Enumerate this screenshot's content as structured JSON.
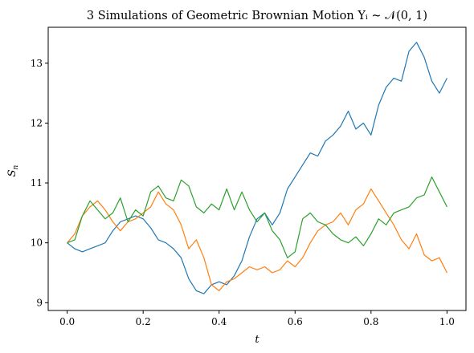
{
  "chart_data": {
    "type": "line",
    "title": "3 Simulations of Geometric Brownian Motion Yᵢ ~ 𝒩(0, 1)",
    "xlabel": "t",
    "ylabel": "S",
    "ylabel_subscript": "n",
    "xlim": [
      -0.05,
      1.05
    ],
    "ylim": [
      8.87,
      13.6
    ],
    "xticks": [
      0.0,
      0.2,
      0.4,
      0.6,
      0.8,
      1.0
    ],
    "xtick_labels": [
      "0.0",
      "0.2",
      "0.4",
      "0.6",
      "0.8",
      "1.0"
    ],
    "yticks": [
      9,
      10,
      11,
      12,
      13
    ],
    "ytick_labels": [
      "9",
      "10",
      "11",
      "12",
      "13"
    ],
    "grid": false,
    "legend": false,
    "series": [
      {
        "color": "#1f77b4",
        "x": [
          0.0,
          0.02,
          0.04,
          0.06,
          0.08,
          0.1,
          0.12,
          0.14,
          0.16,
          0.18,
          0.2,
          0.22,
          0.24,
          0.26,
          0.28,
          0.3,
          0.32,
          0.34,
          0.36,
          0.38,
          0.4,
          0.42,
          0.44,
          0.46,
          0.48,
          0.5,
          0.52,
          0.54,
          0.56,
          0.58,
          0.6,
          0.62,
          0.64,
          0.66,
          0.68,
          0.7,
          0.72,
          0.74,
          0.76,
          0.78,
          0.8,
          0.82,
          0.84,
          0.86,
          0.88,
          0.9,
          0.92,
          0.94,
          0.96,
          0.98,
          1.0
        ],
        "values": [
          10.0,
          9.9,
          9.85,
          9.9,
          9.95,
          10.0,
          10.2,
          10.35,
          10.4,
          10.45,
          10.4,
          10.25,
          10.05,
          10.0,
          9.9,
          9.75,
          9.4,
          9.2,
          9.15,
          9.3,
          9.35,
          9.3,
          9.45,
          9.7,
          10.1,
          10.4,
          10.5,
          10.3,
          10.5,
          10.9,
          11.1,
          11.3,
          11.5,
          11.45,
          11.7,
          11.8,
          11.95,
          12.2,
          11.9,
          12.0,
          11.8,
          12.3,
          12.6,
          12.75,
          12.7,
          13.2,
          13.35,
          13.1,
          12.7,
          12.5,
          12.75
        ]
      },
      {
        "color": "#ff7f0e",
        "x": [
          0.0,
          0.02,
          0.04,
          0.06,
          0.08,
          0.1,
          0.12,
          0.14,
          0.16,
          0.18,
          0.2,
          0.22,
          0.24,
          0.26,
          0.28,
          0.3,
          0.32,
          0.34,
          0.36,
          0.38,
          0.4,
          0.42,
          0.44,
          0.46,
          0.48,
          0.5,
          0.52,
          0.54,
          0.56,
          0.58,
          0.6,
          0.62,
          0.64,
          0.66,
          0.68,
          0.7,
          0.72,
          0.74,
          0.76,
          0.78,
          0.8,
          0.82,
          0.84,
          0.86,
          0.88,
          0.9,
          0.92,
          0.94,
          0.96,
          0.98,
          1.0
        ],
        "values": [
          10.0,
          10.15,
          10.45,
          10.6,
          10.7,
          10.55,
          10.35,
          10.2,
          10.35,
          10.4,
          10.5,
          10.6,
          10.85,
          10.65,
          10.55,
          10.3,
          9.9,
          10.05,
          9.75,
          9.3,
          9.2,
          9.35,
          9.4,
          9.5,
          9.6,
          9.55,
          9.6,
          9.5,
          9.55,
          9.7,
          9.6,
          9.75,
          10.0,
          10.2,
          10.3,
          10.35,
          10.5,
          10.3,
          10.55,
          10.65,
          10.9,
          10.7,
          10.5,
          10.3,
          10.05,
          9.9,
          10.15,
          9.8,
          9.7,
          9.75,
          9.5
        ]
      },
      {
        "color": "#2ca02c",
        "x": [
          0.0,
          0.02,
          0.04,
          0.06,
          0.08,
          0.1,
          0.12,
          0.14,
          0.16,
          0.18,
          0.2,
          0.22,
          0.24,
          0.26,
          0.28,
          0.3,
          0.32,
          0.34,
          0.36,
          0.38,
          0.4,
          0.42,
          0.44,
          0.46,
          0.48,
          0.5,
          0.52,
          0.54,
          0.56,
          0.58,
          0.6,
          0.62,
          0.64,
          0.66,
          0.68,
          0.7,
          0.72,
          0.74,
          0.76,
          0.78,
          0.8,
          0.82,
          0.84,
          0.86,
          0.88,
          0.9,
          0.92,
          0.94,
          0.96,
          0.98,
          1.0
        ],
        "values": [
          10.0,
          10.05,
          10.45,
          10.7,
          10.55,
          10.4,
          10.5,
          10.75,
          10.35,
          10.55,
          10.45,
          10.85,
          10.95,
          10.75,
          10.7,
          11.05,
          10.95,
          10.6,
          10.5,
          10.65,
          10.55,
          10.9,
          10.55,
          10.85,
          10.55,
          10.35,
          10.5,
          10.2,
          10.05,
          9.75,
          9.85,
          10.4,
          10.5,
          10.35,
          10.3,
          10.15,
          10.05,
          10.0,
          10.1,
          9.95,
          10.15,
          10.4,
          10.3,
          10.5,
          10.55,
          10.6,
          10.75,
          10.8,
          11.1,
          10.85,
          10.6
        ]
      }
    ]
  }
}
